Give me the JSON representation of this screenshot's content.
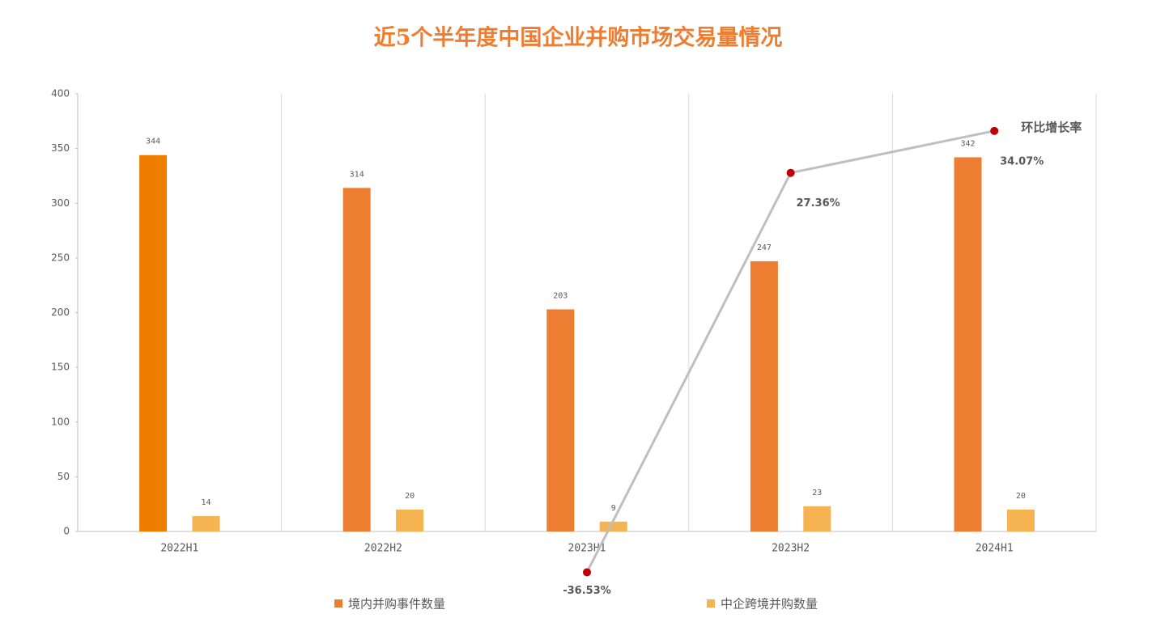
{
  "chart_data": {
    "type": "bar",
    "title": "近5个半年度中国企业并购市场交易量情况",
    "categories": [
      "2022H1",
      "2022H2",
      "2023H1",
      "2023H2",
      "2024H1"
    ],
    "series": [
      {
        "name": "境内并购事件数量",
        "color": "#ed7d31",
        "colors": [
          "#ef7d00",
          "#ed7d31",
          "#ed7d31",
          "#ed7d31",
          "#ed7d31"
        ],
        "values": [
          344,
          314,
          203,
          247,
          342
        ]
      },
      {
        "name": "中企跨境并购数量",
        "color": "#f6b352",
        "values": [
          14,
          20,
          9,
          23,
          20
        ]
      },
      {
        "name": "环比增长率",
        "type": "line",
        "axis": "y2",
        "color": "#bfbfbf",
        "marker_color": "#c00000",
        "values": [
          null,
          null,
          -36.53,
          27.36,
          34.07
        ],
        "value_labels": [
          null,
          null,
          "-36.53%",
          "27.36%",
          "34.07%"
        ]
      }
    ],
    "ylim": [
      0,
      400
    ],
    "yticks": [
      0,
      50,
      100,
      150,
      200,
      250,
      300,
      350,
      400
    ],
    "y2lim": [
      -30,
      40
    ],
    "grid": "vertical",
    "legend": "bottom"
  }
}
